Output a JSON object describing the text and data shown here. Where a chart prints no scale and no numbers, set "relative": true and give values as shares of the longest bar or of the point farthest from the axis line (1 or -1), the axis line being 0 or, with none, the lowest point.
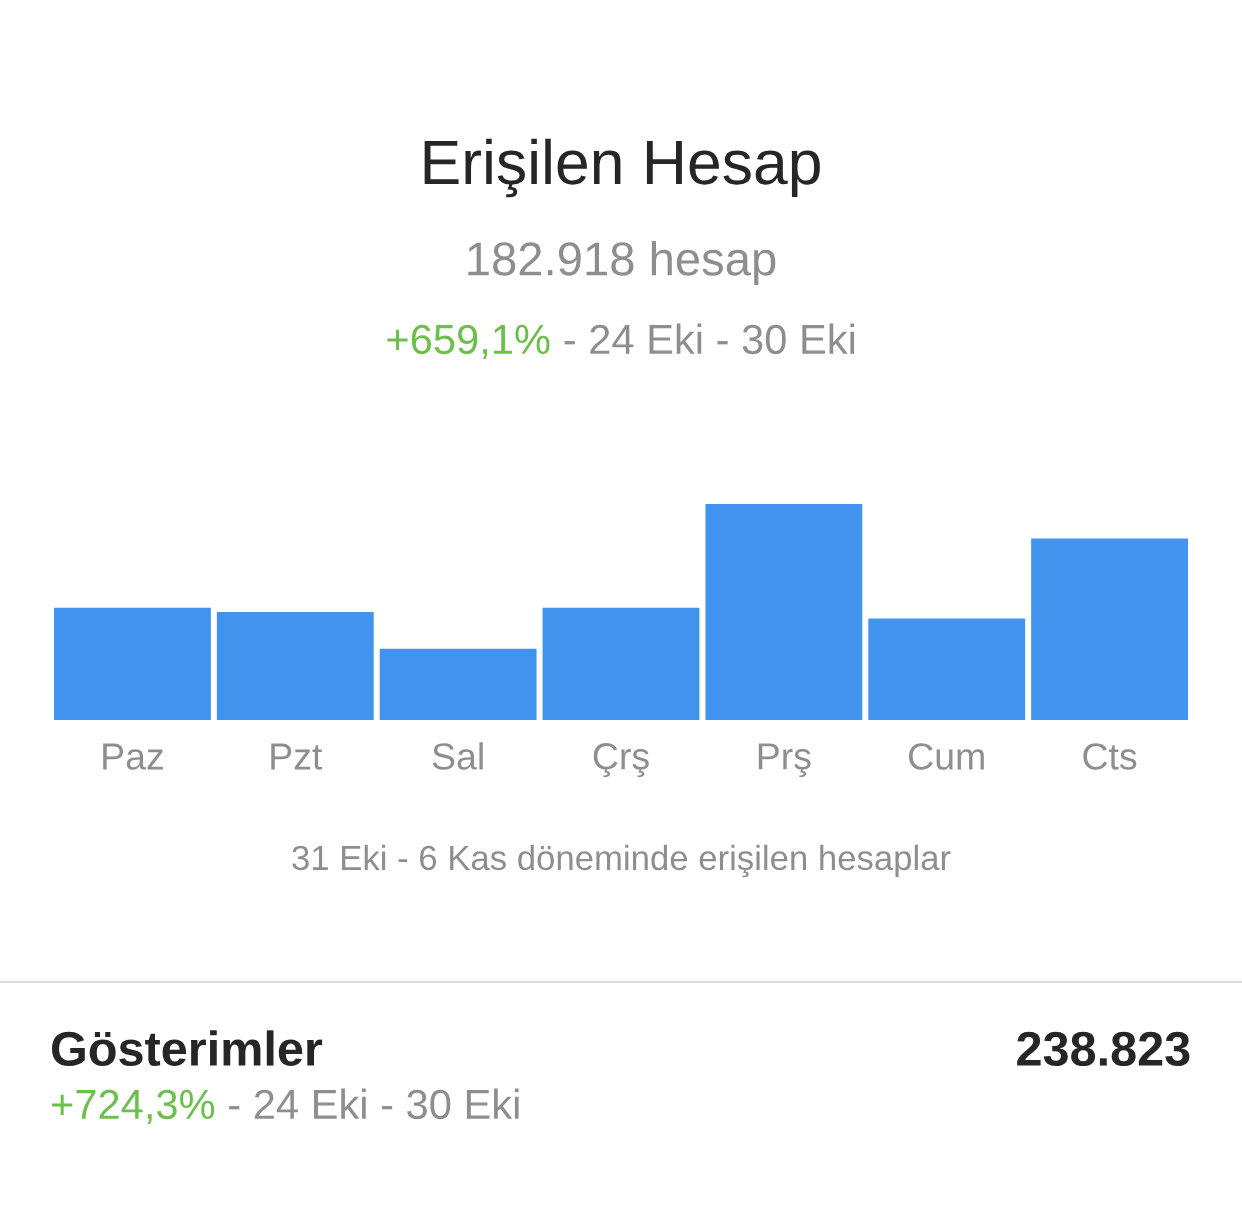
{
  "chart_data": {
    "type": "bar",
    "title": "Erişilen Hesap",
    "subtitle": "182.918 hesap",
    "xlabel": "31 Eki - 6 Kas döneminde erişilen hesaplar",
    "categories": [
      "Paz",
      "Pzt",
      "Sal",
      "Çrş",
      "Prş",
      "Cum",
      "Cts"
    ],
    "values": [
      0.52,
      0.5,
      0.33,
      0.52,
      1,
      0.47,
      0.84
    ],
    "color": "#4293ed",
    "relative": true,
    "annotations": [
      "+659,1%",
      "- 24 Eki - 30 Eki",
      "Gösterimler",
      "238.823",
      "+724,3%",
      "- 24 Eki - 30 Eki"
    ]
  }
}
